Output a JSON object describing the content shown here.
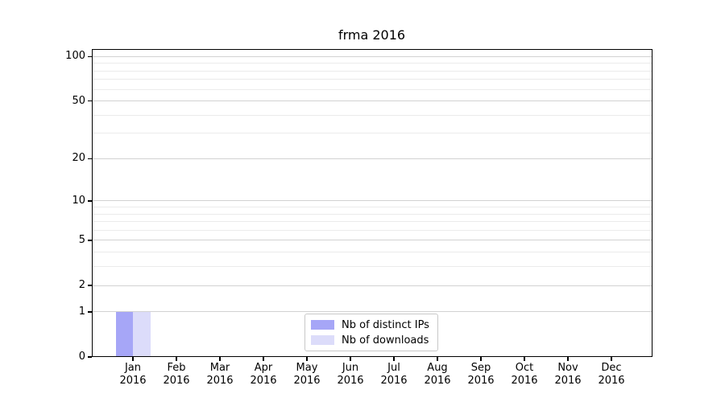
{
  "chart_data": {
    "type": "bar",
    "title": "frma 2016",
    "categories": [
      "Jan",
      "Feb",
      "Mar",
      "Apr",
      "May",
      "Jun",
      "Jul",
      "Aug",
      "Sep",
      "Oct",
      "Nov",
      "Dec"
    ],
    "x_sub_label": "2016",
    "series": [
      {
        "name": "Nb of distinct IPs",
        "color": "#a6a6f7",
        "values": [
          1,
          0,
          0,
          0,
          0,
          0,
          0,
          0,
          0,
          0,
          0,
          0
        ]
      },
      {
        "name": "Nb of downloads",
        "color": "#dcdcfa",
        "values": [
          1,
          0,
          0,
          0,
          0,
          0,
          0,
          0,
          0,
          0,
          0,
          0
        ]
      }
    ],
    "yscale": "log10(1+x)",
    "ylim": [
      0,
      113
    ],
    "yticks": [
      0,
      1,
      2,
      5,
      10,
      20,
      50,
      100
    ],
    "minor_gridlines": [
      3,
      4,
      6,
      7,
      8,
      9,
      30,
      40,
      60,
      70,
      80,
      90
    ],
    "grid": "horizontal",
    "legend_position": "lower center",
    "colors": {
      "axis": "#000000",
      "major_grid": "#d2d2d2",
      "minor_grid": "#ebebeb",
      "legend_border": "#c8c8c8",
      "background": "#ffffff"
    }
  }
}
